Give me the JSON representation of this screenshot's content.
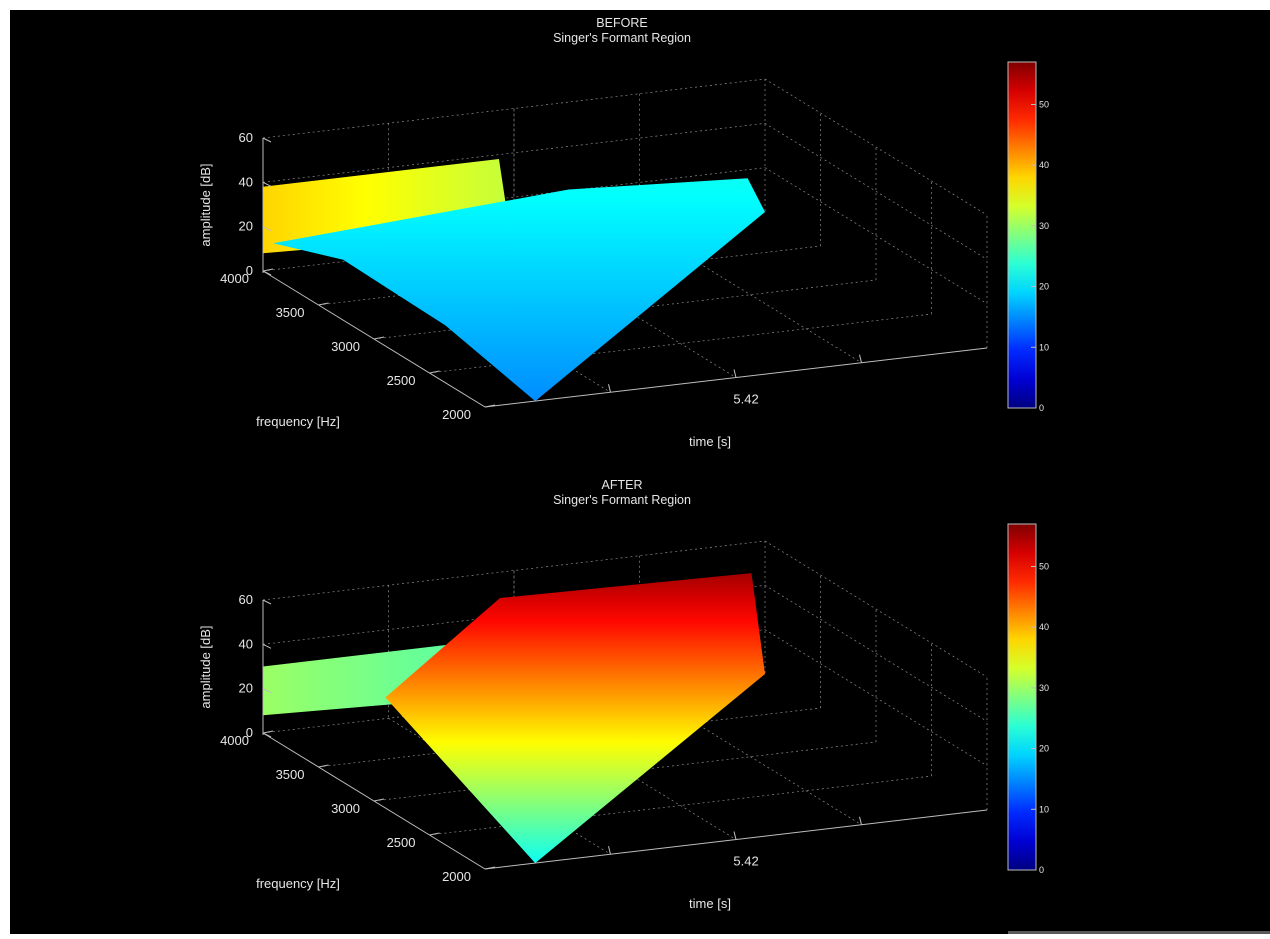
{
  "chart_data": [
    {
      "type": "surface",
      "title": "BEFORE",
      "subtitle": "Singer's Formant Region",
      "xlabel": "time [s]",
      "ylabel": "frequency [Hz]",
      "zlabel": "amplitude [dB]",
      "x_ticks": [
        "5.42"
      ],
      "y_ticks": [
        "2000",
        "2500",
        "3000",
        "3500",
        "4000"
      ],
      "z_ticks": [
        "0",
        "20",
        "40",
        "60"
      ],
      "zlim": [
        0,
        60
      ],
      "colorbar": {
        "min": 0,
        "max": 57,
        "ticks": [
          "0",
          "10",
          "20",
          "30",
          "40",
          "50"
        ]
      },
      "surface_profile": {
        "frequency_hz": [
          2000,
          2500,
          2750,
          3000,
          3250,
          3500,
          3750,
          4000
        ],
        "amplitude_db": [
          7,
          12,
          18,
          22,
          22,
          16,
          12,
          10
        ],
        "far_end_amplitude_db": [
          38,
          38,
          38,
          38,
          38,
          38,
          38,
          38
        ]
      }
    },
    {
      "type": "surface",
      "title": "AFTER",
      "subtitle": "Singer's Formant Region",
      "xlabel": "time [s]",
      "ylabel": "frequency [Hz]",
      "zlabel": "amplitude [dB]",
      "x_ticks": [
        "5.42"
      ],
      "y_ticks": [
        "2000",
        "2500",
        "3000",
        "3500",
        "4000"
      ],
      "z_ticks": [
        "0",
        "20",
        "40",
        "60"
      ],
      "zlim": [
        0,
        60
      ],
      "colorbar": {
        "min": 0,
        "max": 57,
        "ticks": [
          "0",
          "10",
          "20",
          "30",
          "40",
          "50"
        ]
      },
      "surface_profile": {
        "frequency_hz": [
          2000,
          2500,
          2750,
          3000,
          3250,
          3500,
          3750,
          4000
        ],
        "amplitude_db": [
          20,
          32,
          48,
          55,
          55,
          35,
          25,
          18
        ],
        "far_end_amplitude_db": [
          30,
          30,
          30,
          30,
          30,
          30,
          30,
          30
        ]
      }
    }
  ]
}
